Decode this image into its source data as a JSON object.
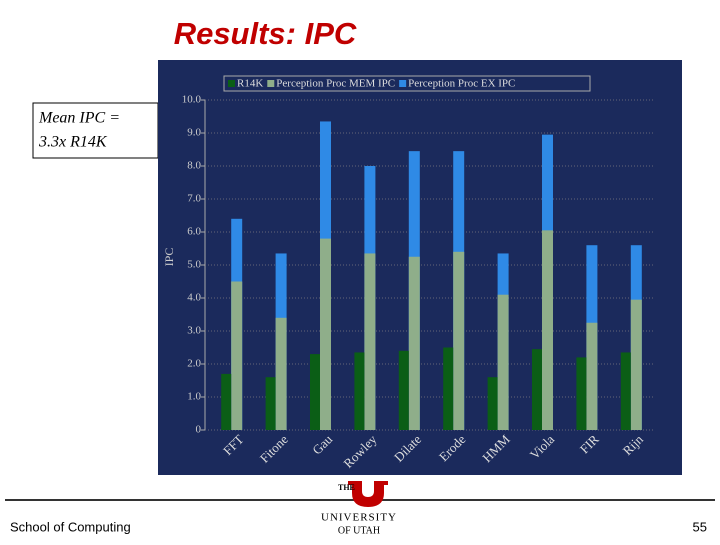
{
  "slide": {
    "title": "Results: IPC",
    "callout": [
      "Mean IPC =",
      "3.3x R14K"
    ],
    "footer": "School of Computing",
    "page_number": "55",
    "logo": [
      "THE",
      "UNIVERSITY",
      "OF UTAH"
    ]
  },
  "chart_data": {
    "type": "bar",
    "y_label": "IPC",
    "categories": [
      "FFT",
      "Fitone",
      "Gau",
      "Rowley",
      "Dilate",
      "Erode",
      "HMM",
      "Viola",
      "FIR",
      "Rijn"
    ],
    "series": [
      {
        "name": "R14K",
        "color": "#0b5e16",
        "values": [
          1.7,
          1.6,
          2.3,
          2.35,
          2.4,
          2.5,
          1.6,
          2.45,
          2.2,
          2.35
        ]
      },
      {
        "name": "Perception Proc MEM IPC",
        "color": "#8fae8a",
        "values": [
          4.5,
          3.4,
          5.8,
          5.35,
          5.25,
          5.4,
          4.1,
          6.05,
          3.25,
          3.95
        ]
      },
      {
        "name": "Perception Proc EX IPC",
        "color": "#2f8ae6",
        "values": [
          6.4,
          5.35,
          9.35,
          8.0,
          8.45,
          8.45,
          5.35,
          8.95,
          5.6,
          5.6
        ]
      }
    ],
    "ylim": [
      0,
      10
    ],
    "yticks": [
      0,
      {
        "value": 1,
        "label": "1.0"
      },
      {
        "value": 2,
        "label": "2.0"
      },
      {
        "value": 3,
        "label": "3.0"
      },
      {
        "value": 4,
        "label": "4.0"
      },
      {
        "value": 5,
        "label": "5.0"
      },
      {
        "value": 6,
        "label": "6.0"
      },
      {
        "value": 7,
        "label": "7.0"
      },
      {
        "value": 8,
        "label": "8.0"
      },
      {
        "value": 9,
        "label": "9.0"
      },
      {
        "value": 10,
        "label": "10.0"
      }
    ],
    "grid": true
  }
}
